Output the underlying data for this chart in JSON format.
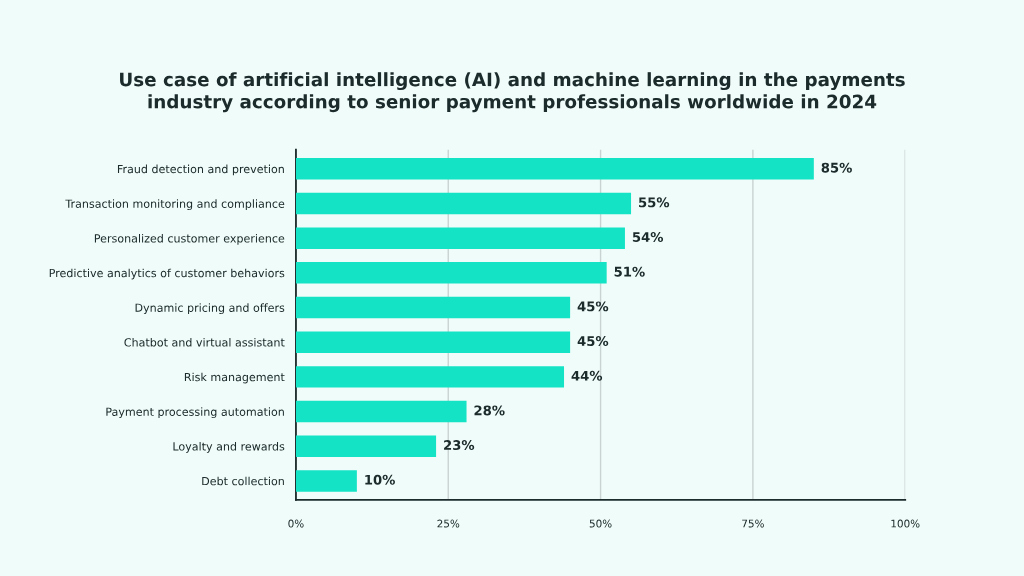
{
  "chart_data": {
    "type": "bar",
    "orientation": "horizontal",
    "title": "Use case of artificial intelligence (AI) and machine learning in the payments\nindustry according to senior payment professionals worldwide in 2024",
    "categories": [
      "Fraud detection and prevetion",
      "Transaction monitoring and compliance",
      "Personalized customer experience",
      "Predictive analytics of customer behaviors",
      "Dynamic pricing and offers",
      "Chatbot and virtual assistant",
      "Risk management",
      "Payment processing automation",
      "Loyalty and rewards",
      "Debt collection"
    ],
    "values": [
      85,
      55,
      54,
      51,
      45,
      45,
      44,
      28,
      23,
      10
    ],
    "value_labels": [
      "85%",
      "55%",
      "54%",
      "51%",
      "45%",
      "45%",
      "44%",
      "28%",
      "23%",
      "10%"
    ],
    "color": "#14e3c5",
    "xlim": [
      0,
      100
    ],
    "xticks": [
      {
        "value": 0,
        "label": "0%"
      },
      {
        "value": 25,
        "label": "25%"
      },
      {
        "value": 50,
        "label": "50%"
      },
      {
        "value": 75,
        "label": "75%"
      },
      {
        "value": 100,
        "label": "100%"
      }
    ],
    "grid": "x",
    "legend": false
  }
}
